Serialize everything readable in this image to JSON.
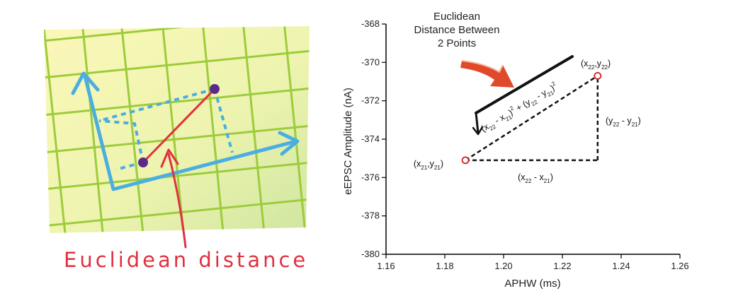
{
  "left_illustration": {
    "caption": "Euclidean distance",
    "colors": {
      "grid_line": "#9ccc3c",
      "axis": "#4aaee0",
      "distance_line": "#e03040",
      "point": "#5a2a8a",
      "caption": "#e03040",
      "paper_light": "#fbf7b8",
      "paper_dark": "#cfe6a0"
    }
  },
  "chart_data": {
    "type": "scatter",
    "title": "Euclidean Distance Between 2 Points",
    "title_lines": [
      "Euclidean",
      "Distance Between",
      "2 Points"
    ],
    "xlabel": "APHW (ms)",
    "ylabel": "eEPSC Amplitude (nA)",
    "xlim": [
      1.16,
      1.26
    ],
    "ylim": [
      -380,
      -368
    ],
    "x_ticks": [
      1.16,
      1.18,
      1.2,
      1.22,
      1.24,
      1.26
    ],
    "x_tick_labels": [
      "1.16",
      "1.18",
      "1.20",
      "1.22",
      "1.24",
      "1.26"
    ],
    "y_ticks": [
      -368,
      -370,
      -372,
      -374,
      -376,
      -378,
      -380
    ],
    "y_tick_labels": [
      "-368",
      "-370",
      "-372",
      "-374",
      "-376",
      "-378",
      "-380"
    ],
    "points": [
      {
        "x": 1.187,
        "y": -375.1,
        "label": "(x21,y21)"
      },
      {
        "x": 1.232,
        "y": -370.7,
        "label": "(x22,y22)"
      }
    ],
    "annotations": {
      "dx": "(x22 - x21)",
      "dy": "(y22 - y21)",
      "formula": "(x22 - x21)² + (y22 - y21)²"
    },
    "colors": {
      "point": "#d02020",
      "arrow": "#e04a2a",
      "line": "#111111"
    }
  }
}
